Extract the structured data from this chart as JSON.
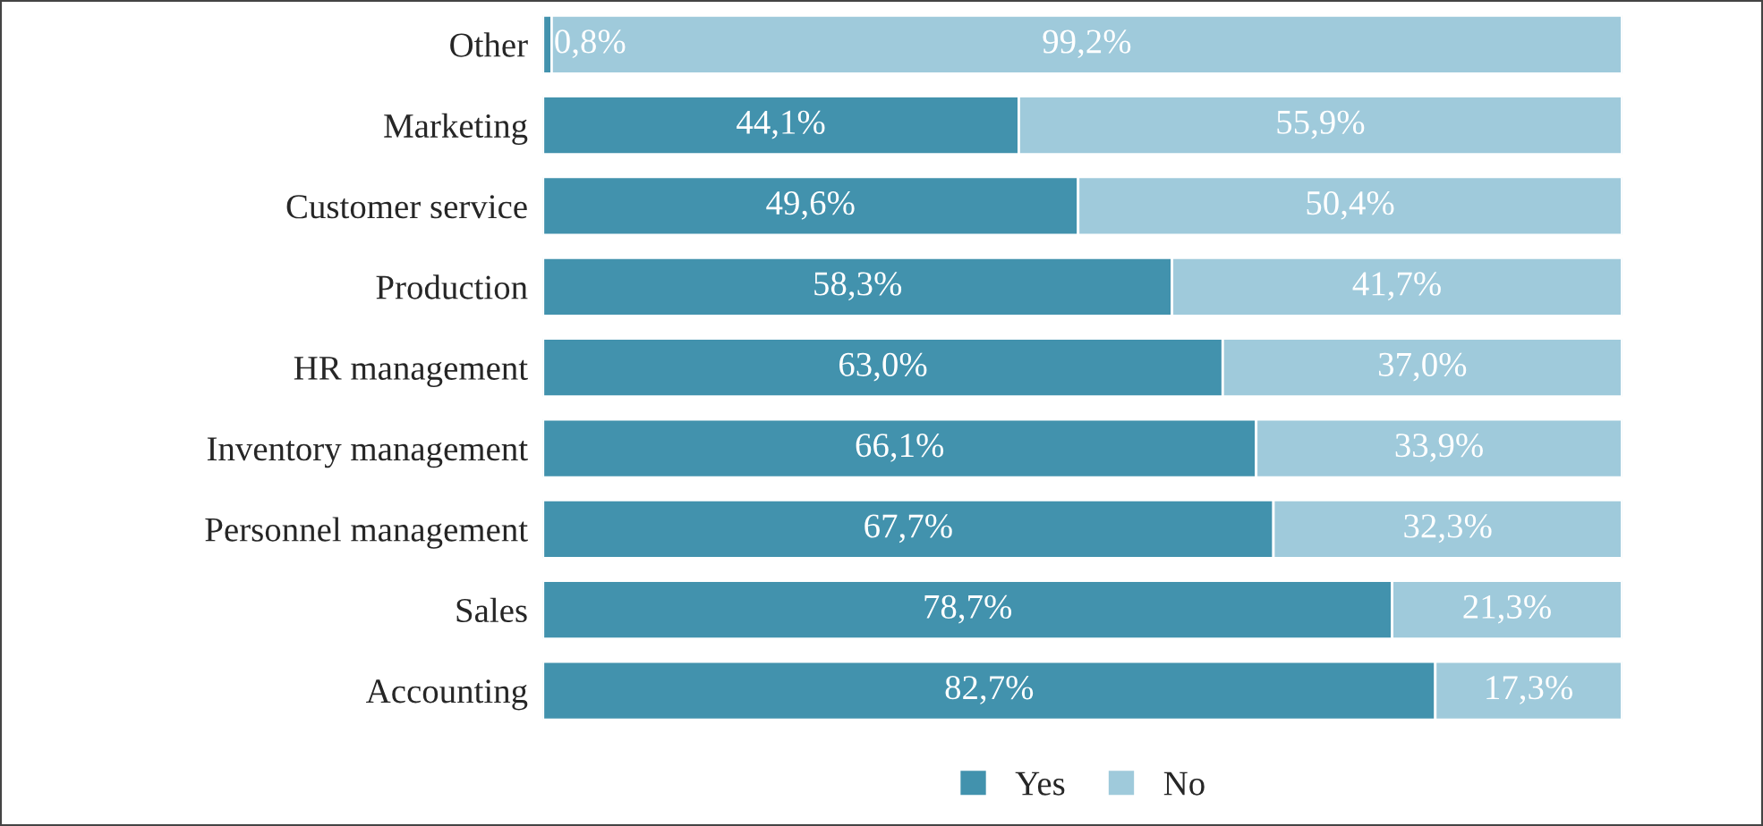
{
  "chart_data": {
    "type": "bar",
    "orientation": "horizontal",
    "stacked": true,
    "legend": "bottom",
    "grid": false,
    "categories": [
      "Other",
      "Marketing",
      "Customer service",
      "Production",
      "HR management",
      "Inventory management",
      "Personnel management",
      "Sales",
      "Accounting"
    ],
    "series": [
      {
        "name": "Yes",
        "color": "#4292ad",
        "values": [
          0.8,
          44.1,
          49.6,
          58.3,
          63.0,
          66.1,
          67.7,
          78.7,
          82.7
        ],
        "value_labels": [
          "0,8%",
          "44,1%",
          "49,6%",
          "58,3%",
          "63,0%",
          "66,1%",
          "67,7%",
          "78,7%",
          "82,7%"
        ]
      },
      {
        "name": "No",
        "color": "#9fcadb",
        "values": [
          99.2,
          55.9,
          50.4,
          41.7,
          37.0,
          33.9,
          32.3,
          21.3,
          17.3
        ],
        "value_labels": [
          "99,2%",
          "55,9%",
          "50,4%",
          "41,7%",
          "37,0%",
          "33,9%",
          "32,3%",
          "21,3%",
          "17,3%"
        ]
      }
    ]
  }
}
